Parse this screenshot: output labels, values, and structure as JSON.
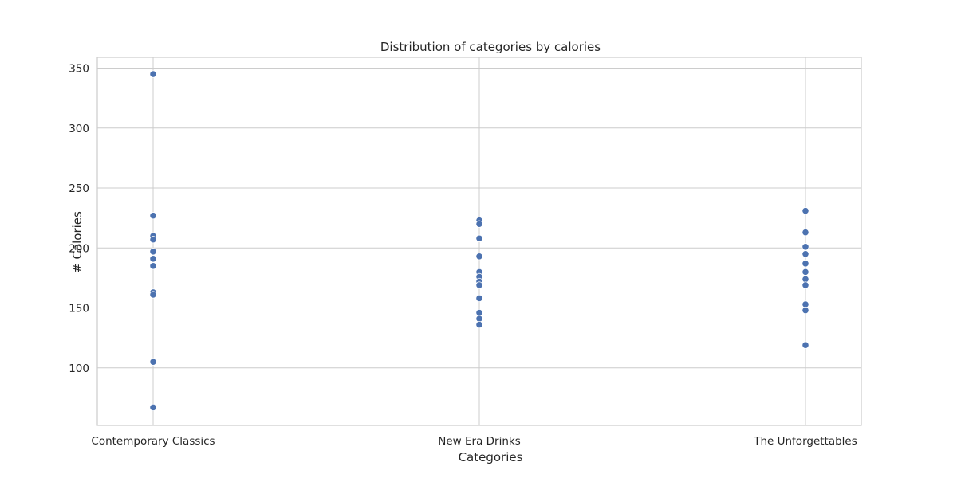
{
  "chart_data": {
    "type": "scatter",
    "title": "Distribution of categories by calories",
    "xlabel": "Categories",
    "ylabel": "# Calories",
    "categories": [
      "Contemporary Classics",
      "New Era Drinks",
      "The Unforgettables"
    ],
    "yticks": [
      100,
      150,
      200,
      250,
      300,
      350
    ],
    "ylim": [
      52,
      359
    ],
    "grid": true,
    "marker_color": "#4c72b0",
    "series": [
      {
        "category": "Contemporary Classics",
        "values": [
          345,
          227,
          210,
          207,
          197,
          191,
          185,
          163,
          161,
          105,
          67
        ]
      },
      {
        "category": "New Era Drinks",
        "values": [
          223,
          220,
          208,
          193,
          180,
          176,
          172,
          169,
          158,
          146,
          141,
          136
        ]
      },
      {
        "category": "The Unforgettables",
        "values": [
          231,
          213,
          201,
          195,
          187,
          180,
          174,
          169,
          153,
          148,
          119
        ]
      }
    ]
  }
}
